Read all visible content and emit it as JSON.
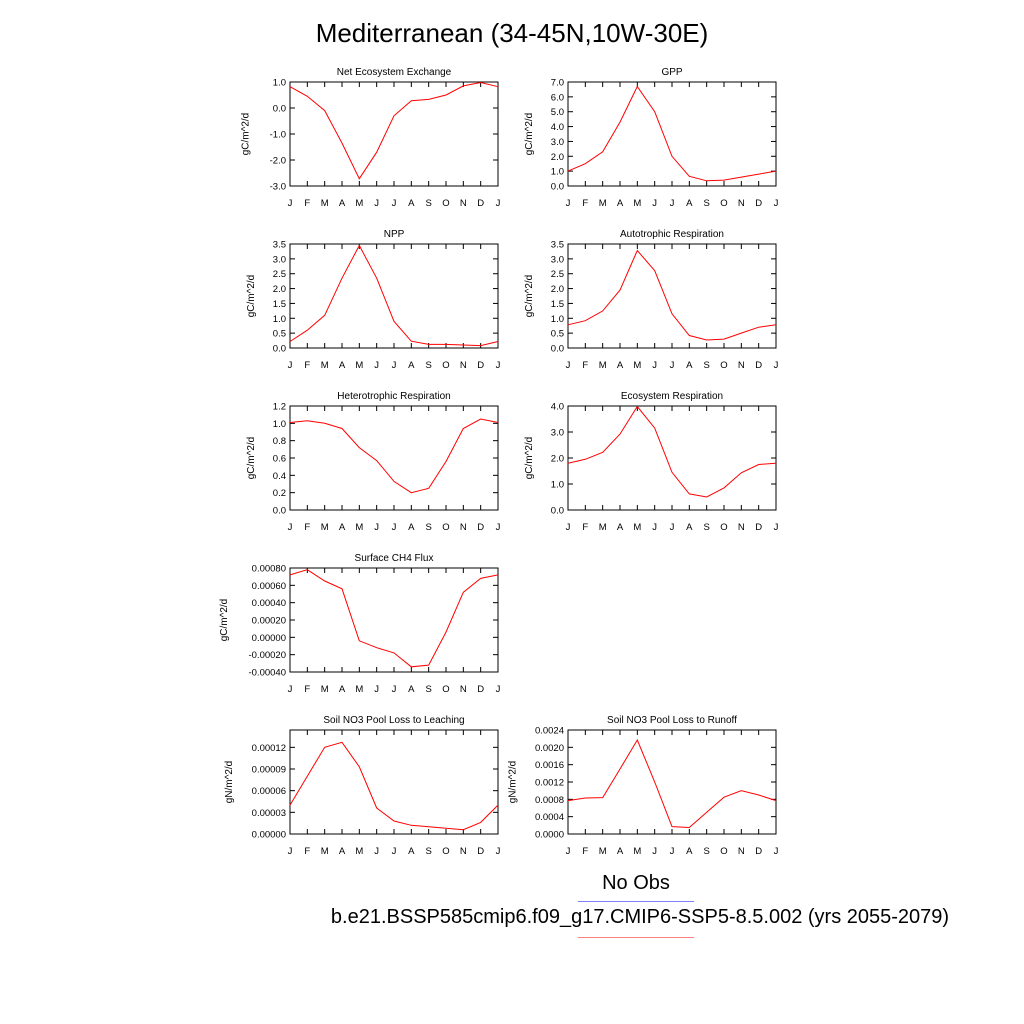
{
  "page_title": "Mediterranean (34-45N,10W-30E)",
  "legend": {
    "obs_label": "No Obs",
    "case_label": "b.e21.BSSP585cmip6.f09_g17.CMIP6-SSP5-8.5.002 (yrs 2055-2079)",
    "obs_color": "#8080ff",
    "case_color": "#ff8080"
  },
  "line_color": "#ff0000",
  "chart_data": [
    {
      "type": "line",
      "title": "Net Ecosystem Exchange",
      "ylabel": "gC/m^2/d",
      "x": [
        "J",
        "F",
        "M",
        "A",
        "M",
        "J",
        "J",
        "A",
        "S",
        "O",
        "N",
        "D",
        "J"
      ],
      "ylim": [
        -3.0,
        1.0
      ],
      "yticks": [
        "1.0",
        "0.0",
        "-1.0",
        "-2.0",
        "-3.0"
      ],
      "yticks_values": [
        1.0,
        0.0,
        -1.0,
        -2.0,
        -3.0
      ],
      "series": [
        {
          "values": [
            0.82,
            0.45,
            -0.1,
            -1.35,
            -2.72,
            -1.7,
            -0.3,
            0.28,
            0.33,
            0.5,
            0.85,
            0.98,
            0.82
          ]
        }
      ]
    },
    {
      "type": "line",
      "title": "GPP",
      "ylabel": "gC/m^2/d",
      "x": [
        "J",
        "F",
        "M",
        "A",
        "M",
        "J",
        "J",
        "A",
        "S",
        "O",
        "N",
        "D",
        "J"
      ],
      "ylim": [
        0.0,
        7.0
      ],
      "yticks": [
        "7.0",
        "6.0",
        "5.0",
        "4.0",
        "3.0",
        "2.0",
        "1.0",
        "0.0"
      ],
      "yticks_values": [
        7,
        6,
        5,
        4,
        3,
        2,
        1,
        0
      ],
      "series": [
        {
          "values": [
            1.0,
            1.5,
            2.3,
            4.3,
            6.7,
            5.0,
            2.0,
            0.65,
            0.35,
            0.4,
            0.6,
            0.8,
            1.0
          ]
        }
      ]
    },
    {
      "type": "line",
      "title": "NPP",
      "ylabel": "gC/m^2/d",
      "x": [
        "J",
        "F",
        "M",
        "A",
        "M",
        "J",
        "J",
        "A",
        "S",
        "O",
        "N",
        "D",
        "J"
      ],
      "ylim": [
        0.0,
        3.5
      ],
      "yticks": [
        "3.5",
        "3.0",
        "2.5",
        "2.0",
        "1.5",
        "1.0",
        "0.5",
        "0.0"
      ],
      "yticks_values": [
        3.5,
        3.0,
        2.5,
        2.0,
        1.5,
        1.0,
        0.5,
        0.0
      ],
      "series": [
        {
          "values": [
            0.22,
            0.6,
            1.1,
            2.35,
            3.45,
            2.35,
            0.9,
            0.23,
            0.12,
            0.12,
            0.1,
            0.08,
            0.22
          ]
        }
      ]
    },
    {
      "type": "line",
      "title": "Autotrophic Respiration",
      "ylabel": "gC/m^2/d",
      "x": [
        "J",
        "F",
        "M",
        "A",
        "M",
        "J",
        "J",
        "A",
        "S",
        "O",
        "N",
        "D",
        "J"
      ],
      "ylim": [
        0.0,
        3.5
      ],
      "yticks": [
        "3.5",
        "3.0",
        "2.5",
        "2.0",
        "1.5",
        "1.0",
        "0.5",
        "0.0"
      ],
      "yticks_values": [
        3.5,
        3.0,
        2.5,
        2.0,
        1.5,
        1.0,
        0.5,
        0.0
      ],
      "series": [
        {
          "values": [
            0.78,
            0.92,
            1.25,
            1.95,
            3.28,
            2.6,
            1.15,
            0.42,
            0.27,
            0.3,
            0.5,
            0.7,
            0.78
          ]
        }
      ]
    },
    {
      "type": "line",
      "title": "Heterotrophic Respiration",
      "ylabel": "gC/m^2/d",
      "x": [
        "J",
        "F",
        "M",
        "A",
        "M",
        "J",
        "J",
        "A",
        "S",
        "O",
        "N",
        "D",
        "J"
      ],
      "ylim": [
        0.0,
        1.2
      ],
      "yticks": [
        "1.2",
        "1.0",
        "0.8",
        "0.6",
        "0.4",
        "0.2",
        "0.0"
      ],
      "yticks_values": [
        1.2,
        1.0,
        0.8,
        0.6,
        0.4,
        0.2,
        0.0
      ],
      "series": [
        {
          "values": [
            1.01,
            1.03,
            1.0,
            0.94,
            0.72,
            0.57,
            0.33,
            0.2,
            0.25,
            0.56,
            0.94,
            1.05,
            1.01
          ]
        }
      ]
    },
    {
      "type": "line",
      "title": "Ecosystem Respiration",
      "ylabel": "gC/m^2/d",
      "x": [
        "J",
        "F",
        "M",
        "A",
        "M",
        "J",
        "J",
        "A",
        "S",
        "O",
        "N",
        "D",
        "J"
      ],
      "ylim": [
        0.0,
        4.0
      ],
      "yticks": [
        "4.0",
        "3.0",
        "2.0",
        "1.0",
        "0.0"
      ],
      "yticks_values": [
        4.0,
        3.0,
        2.0,
        1.0,
        0.0
      ],
      "series": [
        {
          "values": [
            1.8,
            1.95,
            2.22,
            2.92,
            3.98,
            3.15,
            1.45,
            0.62,
            0.5,
            0.85,
            1.43,
            1.75,
            1.8
          ]
        }
      ]
    },
    {
      "type": "line",
      "title": "Surface CH4 Flux",
      "ylabel": "gC/m^2/d",
      "x": [
        "J",
        "F",
        "M",
        "A",
        "M",
        "J",
        "J",
        "A",
        "S",
        "O",
        "N",
        "D",
        "J"
      ],
      "ylim": [
        -0.0004,
        0.0008
      ],
      "yticks": [
        "0.00080",
        "0.00060",
        "0.00040",
        "0.00020",
        "0.00000",
        "-0.00020",
        "-0.00040"
      ],
      "yticks_values": [
        0.0008,
        0.0006,
        0.0004,
        0.0002,
        0.0,
        -0.0002,
        -0.0004
      ],
      "series": [
        {
          "values": [
            0.00072,
            0.00078,
            0.00065,
            0.00056,
            -4e-05,
            -0.00012,
            -0.00018,
            -0.00034,
            -0.00032,
            6e-05,
            0.00052,
            0.00068,
            0.00072
          ]
        }
      ]
    },
    {
      "type": "line",
      "title": "Soil NO3 Pool Loss to Leaching",
      "ylabel": "gN/m^2/d",
      "x": [
        "J",
        "F",
        "M",
        "A",
        "M",
        "J",
        "J",
        "A",
        "S",
        "O",
        "N",
        "D",
        "J"
      ],
      "ylim": [
        0.0,
        0.000144
      ],
      "yticks": [
        "0.00012",
        "0.00009",
        "0.00006",
        "0.00003",
        "0.00000"
      ],
      "yticks_values": [
        0.00012,
        9e-05,
        6e-05,
        3e-05,
        0.0
      ],
      "series": [
        {
          "values": [
            4e-05,
            8e-05,
            0.00012,
            0.000127,
            9.3e-05,
            3.6e-05,
            1.8e-05,
            1.2e-05,
            1e-05,
            8e-06,
            6e-06,
            1.6e-05,
            4e-05
          ]
        }
      ]
    },
    {
      "type": "line",
      "title": "Soil NO3 Pool Loss to Runoff",
      "ylabel": "gN/m^2/d",
      "x": [
        "J",
        "F",
        "M",
        "A",
        "M",
        "J",
        "J",
        "A",
        "S",
        "O",
        "N",
        "D",
        "J"
      ],
      "ylim": [
        0.0,
        0.0024
      ],
      "yticks": [
        "0.0024",
        "0.0020",
        "0.0016",
        "0.0012",
        "0.0008",
        "0.0004",
        "0.0000"
      ],
      "yticks_values": [
        0.0024,
        0.002,
        0.0016,
        0.0012,
        0.0008,
        0.0004,
        0.0
      ],
      "series": [
        {
          "values": [
            0.00077,
            0.00083,
            0.00084,
            0.0015,
            0.00217,
            0.0012,
            0.00017,
            0.00015,
            0.0005,
            0.00085,
            0.001,
            0.0009,
            0.00077
          ]
        }
      ]
    }
  ]
}
